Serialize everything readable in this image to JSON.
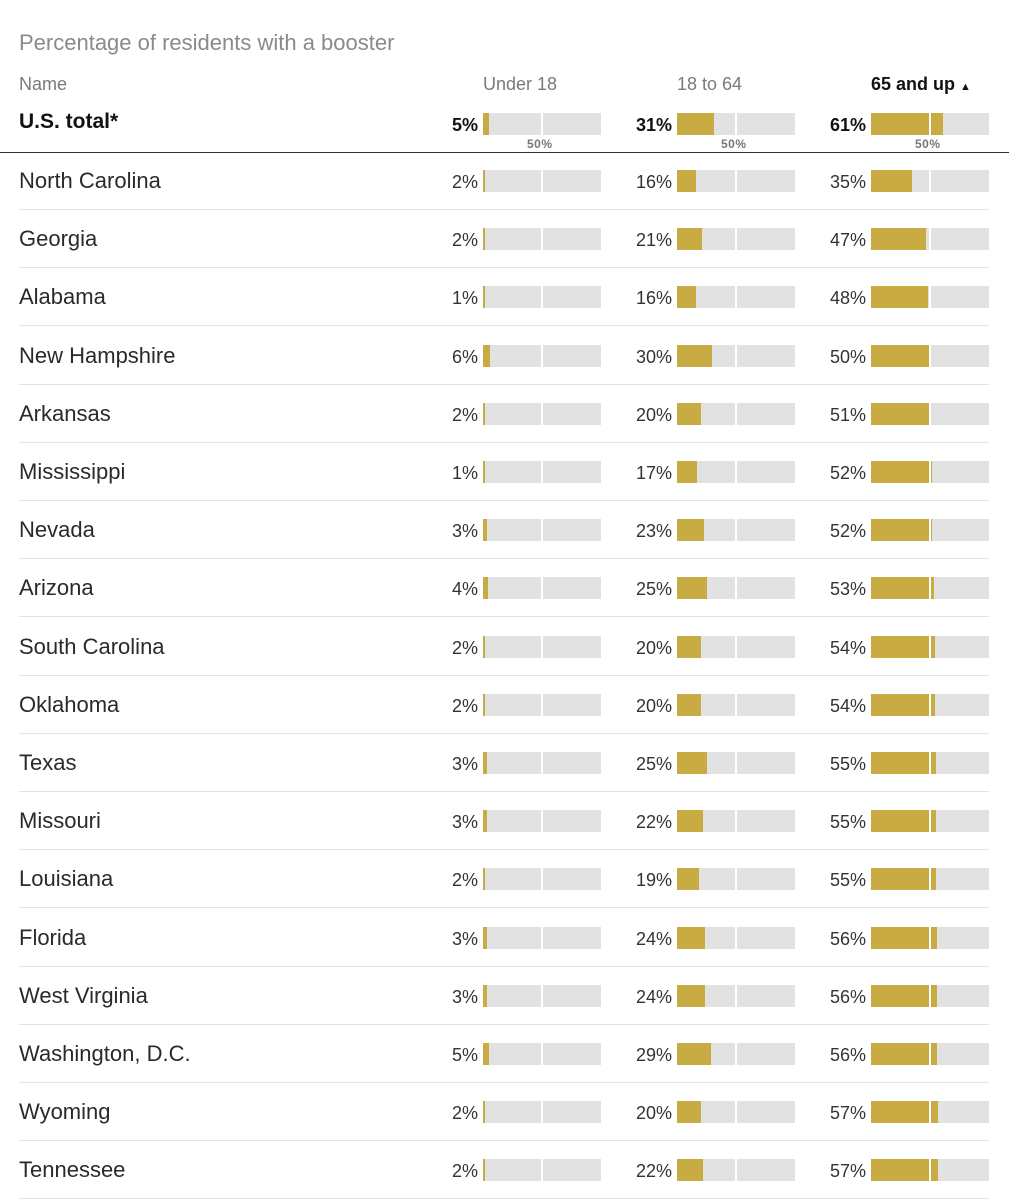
{
  "title": "Percentage of residents with a booster",
  "columns": {
    "name": "Name",
    "under18": "Under 18",
    "adults": "18 to 64",
    "seniors": "65 and up",
    "sort_indicator": "▲"
  },
  "tick_label": "50%",
  "colors": {
    "bar": "#c9ab44",
    "track": "#e2e2e2"
  },
  "chart_data": {
    "type": "bar",
    "title": "Percentage of residents with a booster",
    "unit": "%",
    "series_names": [
      "Under 18",
      "18 to 64",
      "65 and up"
    ],
    "xlim": [
      0,
      100
    ],
    "ticks": [
      50
    ],
    "total": {
      "name": "U.S. total*",
      "values": [
        5,
        31,
        61
      ]
    },
    "rows": [
      {
        "name": "North Carolina",
        "values": [
          2,
          16,
          35
        ]
      },
      {
        "name": "Georgia",
        "values": [
          2,
          21,
          47
        ]
      },
      {
        "name": "Alabama",
        "values": [
          1,
          16,
          48
        ]
      },
      {
        "name": "New Hampshire",
        "values": [
          6,
          30,
          50
        ]
      },
      {
        "name": "Arkansas",
        "values": [
          2,
          20,
          51
        ]
      },
      {
        "name": "Mississippi",
        "values": [
          1,
          17,
          52
        ]
      },
      {
        "name": "Nevada",
        "values": [
          3,
          23,
          52
        ]
      },
      {
        "name": "Arizona",
        "values": [
          4,
          25,
          53
        ]
      },
      {
        "name": "South Carolina",
        "values": [
          2,
          20,
          54
        ]
      },
      {
        "name": "Oklahoma",
        "values": [
          2,
          20,
          54
        ]
      },
      {
        "name": "Texas",
        "values": [
          3,
          25,
          55
        ]
      },
      {
        "name": "Missouri",
        "values": [
          3,
          22,
          55
        ]
      },
      {
        "name": "Louisiana",
        "values": [
          2,
          19,
          55
        ]
      },
      {
        "name": "Florida",
        "values": [
          3,
          24,
          56
        ]
      },
      {
        "name": "West Virginia",
        "values": [
          3,
          24,
          56
        ]
      },
      {
        "name": "Washington, D.C.",
        "values": [
          5,
          29,
          56
        ]
      },
      {
        "name": "Wyoming",
        "values": [
          2,
          20,
          57
        ]
      },
      {
        "name": "Tennessee",
        "values": [
          2,
          22,
          57
        ]
      }
    ]
  }
}
